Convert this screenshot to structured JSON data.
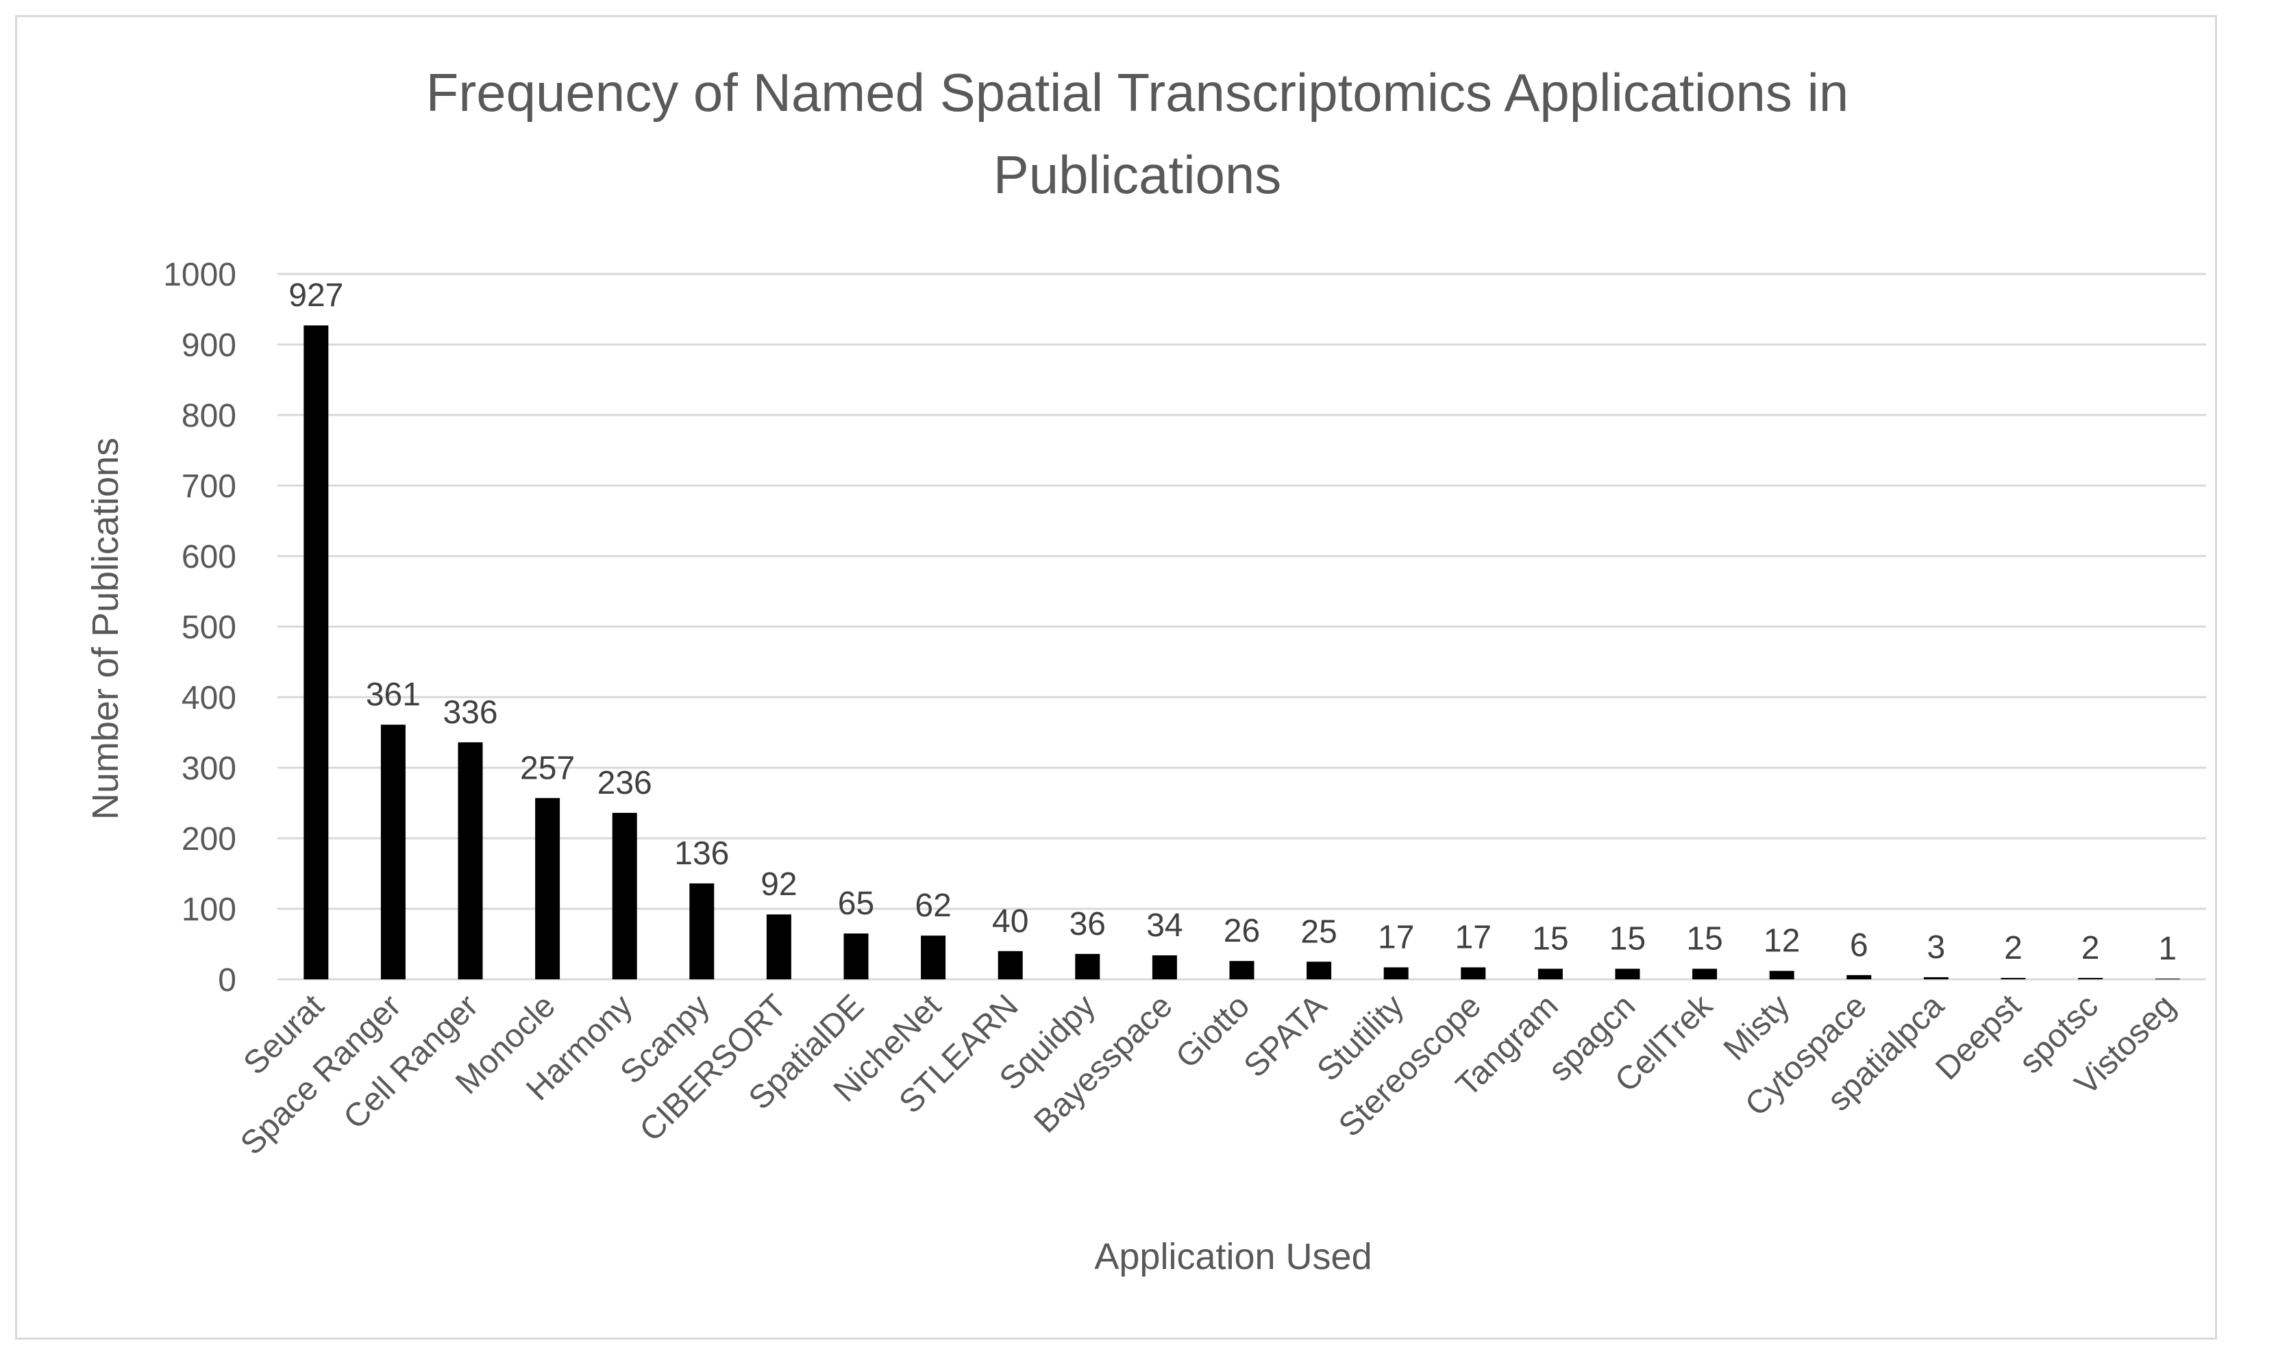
{
  "chart_data": {
    "type": "bar",
    "title_lines": [
      "Frequency of Named Spatial Transcriptomics Applications in",
      "Publications"
    ],
    "xlabel": "Application Used",
    "ylabel": "Number of Publications",
    "ylim": [
      0,
      1000
    ],
    "yticks": [
      "0",
      "100",
      "200",
      "300",
      "400",
      "500",
      "600",
      "700",
      "800",
      "900",
      "1000"
    ],
    "grid": true,
    "legend": "none",
    "bar_color": "#000000",
    "categories": [
      "Seurat",
      "Space Ranger",
      "Cell Ranger",
      "Monocle",
      "Harmony",
      "Scanpy",
      "CIBERSORT",
      "SpatialDE",
      "NicheNet",
      "STLEARN",
      "Squidpy",
      "Bayesspace",
      "Giotto",
      "SPATA",
      "Stutility",
      "Stereoscope",
      "Tangram",
      "spagcn",
      "CellTrek",
      "Misty",
      "Cytospace",
      "spatialpca",
      "Deepst",
      "spotsc",
      "Vistoseg"
    ],
    "values": [
      927,
      361,
      336,
      257,
      236,
      136,
      92,
      65,
      62,
      40,
      36,
      34,
      26,
      25,
      17,
      17,
      15,
      15,
      15,
      12,
      6,
      3,
      2,
      2,
      1
    ],
    "value_labels": [
      "927",
      "361",
      "336",
      "257",
      "236",
      "136",
      "92",
      "65",
      "62",
      "40",
      "36",
      "34",
      "26",
      "25",
      "17",
      "17",
      "15",
      "15",
      "15",
      "12",
      "6",
      "3",
      "2",
      "2",
      "1"
    ]
  }
}
